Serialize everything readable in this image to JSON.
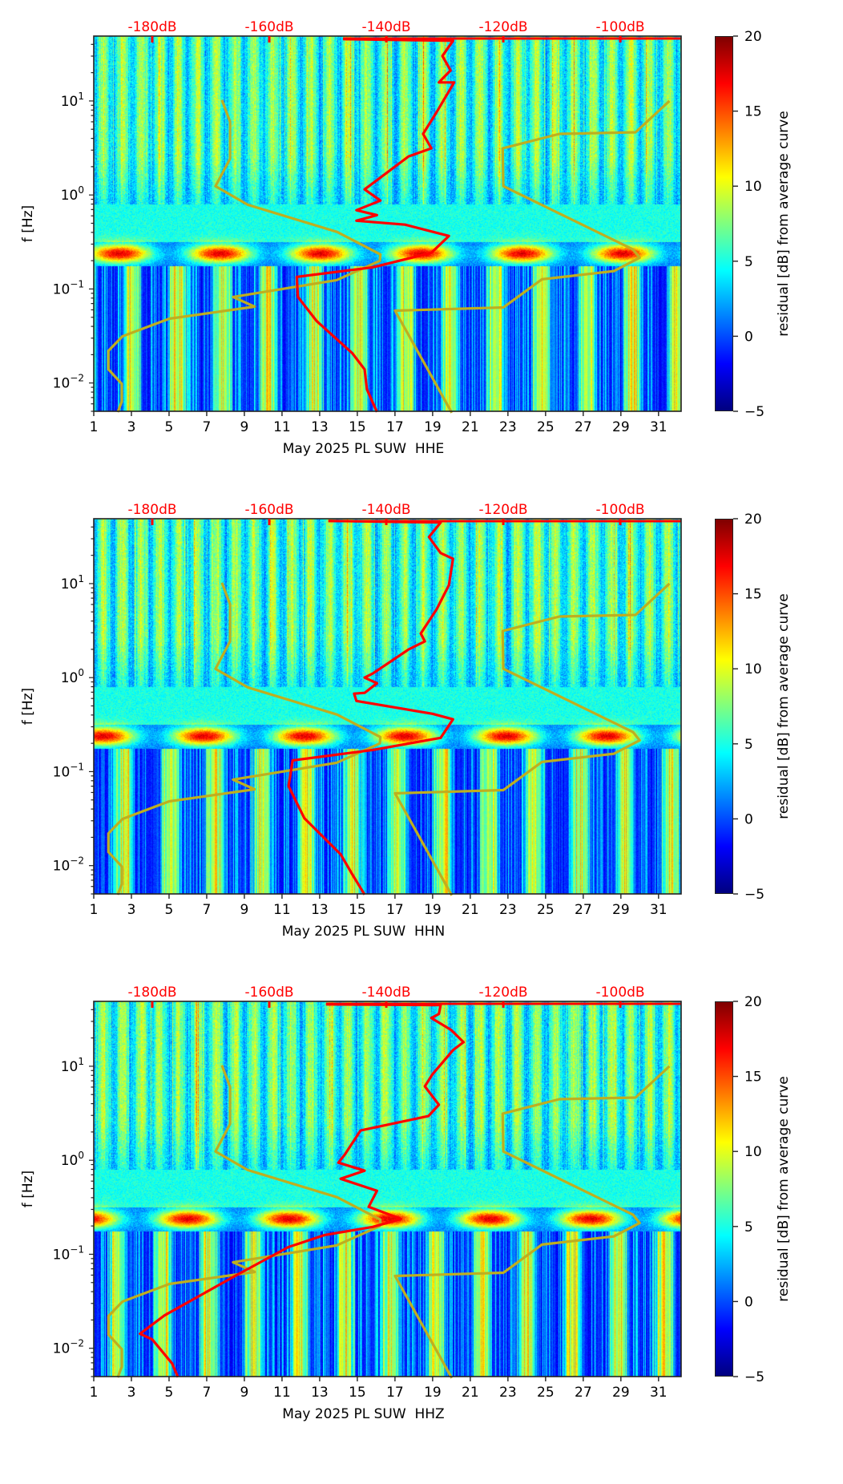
{
  "chart_data": [
    {
      "type": "heatmap",
      "title": "",
      "xlabel": "May 2025 PL SUW  HHE",
      "ylabel": "f [Hz]",
      "x_ticks": [
        "1",
        "3",
        "5",
        "7",
        "9",
        "11",
        "13",
        "15",
        "17",
        "19",
        "21",
        "23",
        "25",
        "27",
        "29",
        "31"
      ],
      "x_range": [
        1,
        32.2
      ],
      "y_scale": "log",
      "y_ticks": [
        {
          "value": 10,
          "label": "10^1"
        },
        {
          "value": 1,
          "label": "10^0"
        },
        {
          "value": 0.1,
          "label": "10^-1"
        },
        {
          "value": 0.01,
          "label": "10^-2"
        }
      ],
      "y_range": [
        0.005,
        49
      ],
      "top_axis": {
        "label_color": "#ff0000",
        "ticks": [
          "-180dB",
          "-160dB",
          "-140dB",
          "-120dB",
          "-100dB"
        ],
        "values": [
          -180,
          -160,
          -140,
          -120,
          -100
        ],
        "range": [
          -190,
          -89.6
        ]
      },
      "colorbar": {
        "label": "residual [dB] from average curve",
        "ticks": [
          "20",
          "15",
          "10",
          "5",
          "0",
          "−5"
        ],
        "values": [
          20,
          15,
          10,
          5,
          0,
          -5
        ],
        "range": [
          -5,
          20
        ],
        "colormap": "jet"
      },
      "series": [
        {
          "name": "average PSD curve",
          "color": "#ff0000",
          "units": [
            "dB",
            "Hz_log10"
          ],
          "points": [
            [
              -147.4,
              1.658
            ],
            [
              -128.6,
              1.641
            ],
            [
              -130.4,
              1.479
            ],
            [
              -129.0,
              1.325
            ],
            [
              -131.0,
              1.197
            ],
            [
              -128.4,
              1.197
            ],
            [
              -131.4,
              0.88
            ],
            [
              -133.7,
              0.65
            ],
            [
              -132.3,
              0.496
            ],
            [
              -136.2,
              0.41
            ],
            [
              -142.6,
              0.111
            ],
            [
              -143.7,
              0.06
            ],
            [
              -141.0,
              -0.06
            ],
            [
              -145.1,
              -0.162
            ],
            [
              -141.6,
              -0.214
            ],
            [
              -145.1,
              -0.274
            ],
            [
              -136.8,
              -0.316
            ],
            [
              -129.3,
              -0.436
            ],
            [
              -132.3,
              -0.615
            ],
            [
              -142.3,
              -0.769
            ],
            [
              -155.3,
              -0.872
            ],
            [
              -155.1,
              -1.085
            ],
            [
              -151.9,
              -1.342
            ],
            [
              -145.8,
              -1.684
            ],
            [
              -143.7,
              -1.855
            ],
            [
              -143.3,
              -2.068
            ],
            [
              -141.6,
              -2.308
            ]
          ]
        },
        {
          "name": "NLNM",
          "color": "#bfae1f",
          "ref": "nlnm"
        },
        {
          "name": "NHNM",
          "color": "#bfae1f",
          "ref": "nhnm"
        }
      ]
    },
    {
      "type": "heatmap",
      "title": "",
      "xlabel": "May 2025 PL SUW  HHN",
      "ylabel": "f [Hz]",
      "x_ticks": [
        "1",
        "3",
        "5",
        "7",
        "9",
        "11",
        "13",
        "15",
        "17",
        "19",
        "21",
        "23",
        "25",
        "27",
        "29",
        "31"
      ],
      "x_range": [
        1,
        32.2
      ],
      "y_scale": "log",
      "y_ticks": [
        {
          "value": 10,
          "label": "10^1"
        },
        {
          "value": 1,
          "label": "10^0"
        },
        {
          "value": 0.1,
          "label": "10^-1"
        },
        {
          "value": 0.01,
          "label": "10^-2"
        }
      ],
      "y_range": [
        0.005,
        49
      ],
      "top_axis": {
        "label_color": "#ff0000",
        "ticks": [
          "-180dB",
          "-160dB",
          "-140dB",
          "-120dB",
          "-100dB"
        ],
        "values": [
          -180,
          -160,
          -140,
          -120,
          -100
        ],
        "range": [
          -190,
          -89.6
        ]
      },
      "colorbar": {
        "label": "residual [dB] from average curve",
        "ticks": [
          "20",
          "15",
          "10",
          "5",
          "0",
          "−5"
        ],
        "values": [
          20,
          15,
          10,
          5,
          0,
          -5
        ],
        "range": [
          -5,
          20
        ],
        "colormap": "jet"
      },
      "series": [
        {
          "name": "average PSD curve",
          "color": "#ff0000",
          "units": [
            "dB",
            "Hz_log10"
          ],
          "points": [
            [
              -149.9,
              1.667
            ],
            [
              -130.7,
              1.65
            ],
            [
              -132.7,
              1.496
            ],
            [
              -130.7,
              1.325
            ],
            [
              -128.6,
              1.265
            ],
            [
              -129.3,
              0.983
            ],
            [
              -131.4,
              0.726
            ],
            [
              -134.1,
              0.47
            ],
            [
              -133.4,
              0.385
            ],
            [
              -136.2,
              0.299
            ],
            [
              -142.3,
              0.043
            ],
            [
              -143.7,
              0.0
            ],
            [
              -141.6,
              -0.06
            ],
            [
              -143.7,
              -0.162
            ],
            [
              -145.5,
              -0.171
            ],
            [
              -145.1,
              -0.248
            ],
            [
              -132.1,
              -0.385
            ],
            [
              -128.6,
              -0.444
            ],
            [
              -130.7,
              -0.641
            ],
            [
              -142.3,
              -0.769
            ],
            [
              -156.0,
              -0.88
            ],
            [
              -156.7,
              -1.154
            ],
            [
              -154.0,
              -1.496
            ],
            [
              -147.8,
              -1.88
            ],
            [
              -145.8,
              -2.094
            ],
            [
              -143.7,
              -2.308
            ]
          ]
        },
        {
          "name": "NLNM",
          "color": "#bfae1f",
          "ref": "nlnm"
        },
        {
          "name": "NHNM",
          "color": "#bfae1f",
          "ref": "nhnm"
        }
      ]
    },
    {
      "type": "heatmap",
      "title": "",
      "xlabel": "May 2025 PL SUW  HHZ",
      "ylabel": "f [Hz]",
      "x_ticks": [
        "1",
        "3",
        "5",
        "7",
        "9",
        "11",
        "13",
        "15",
        "17",
        "19",
        "21",
        "23",
        "25",
        "27",
        "29",
        "31"
      ],
      "x_range": [
        1,
        32.2
      ],
      "y_scale": "log",
      "y_ticks": [
        {
          "value": 10,
          "label": "10^1"
        },
        {
          "value": 1,
          "label": "10^0"
        },
        {
          "value": 0.1,
          "label": "10^-1"
        },
        {
          "value": 0.01,
          "label": "10^-2"
        }
      ],
      "y_range": [
        0.005,
        49
      ],
      "top_axis": {
        "label_color": "#ff0000",
        "ticks": [
          "-180dB",
          "-160dB",
          "-140dB",
          "-120dB",
          "-100dB"
        ],
        "values": [
          -180,
          -160,
          -140,
          -120,
          -100
        ],
        "range": [
          -190,
          -89.6
        ]
      },
      "colorbar": {
        "label": "residual [dB] from average curve",
        "ticks": [
          "20",
          "15",
          "10",
          "5",
          "0",
          "−5"
        ],
        "values": [
          20,
          15,
          10,
          5,
          0,
          -5
        ],
        "range": [
          -5,
          20
        ],
        "colormap": "jet"
      },
      "series": [
        {
          "name": "average PSD curve",
          "color": "#ff0000",
          "units": [
            "dB",
            "Hz_log10"
          ],
          "points": [
            [
              -150.3,
              1.658
            ],
            [
              -130.7,
              1.65
            ],
            [
              -131.0,
              1.556
            ],
            [
              -132.3,
              1.513
            ],
            [
              -128.9,
              1.385
            ],
            [
              -126.8,
              1.256
            ],
            [
              -128.6,
              1.171
            ],
            [
              -132.1,
              0.915
            ],
            [
              -133.4,
              0.786
            ],
            [
              -131.0,
              0.59
            ],
            [
              -132.8,
              0.47
            ],
            [
              -144.4,
              0.316
            ],
            [
              -147.1,
              0.06
            ],
            [
              -148.2,
              -0.026
            ],
            [
              -143.7,
              -0.111
            ],
            [
              -147.8,
              -0.197
            ],
            [
              -141.6,
              -0.325
            ],
            [
              -143.0,
              -0.496
            ],
            [
              -137.5,
              -0.624
            ],
            [
              -142.3,
              -0.709
            ],
            [
              -150.5,
              -0.795
            ],
            [
              -156.7,
              -0.923
            ],
            [
              -165.6,
              -1.222
            ],
            [
              -177.9,
              -1.65
            ],
            [
              -182.1,
              -1.846
            ],
            [
              -180.0,
              -1.906
            ],
            [
              -176.6,
              -2.162
            ],
            [
              -175.6,
              -2.308
            ]
          ]
        },
        {
          "name": "NLNM",
          "color": "#bfae1f",
          "ref": "nlnm"
        },
        {
          "name": "NHNM",
          "color": "#bfae1f",
          "ref": "nhnm"
        }
      ]
    }
  ],
  "noise_models": {
    "nlnm": [
      [
        -168.1,
        1.01
      ],
      [
        -166.7,
        0.78
      ],
      [
        -166.7,
        0.385
      ],
      [
        -169.2,
        0.094
      ],
      [
        -163.7,
        -0.103
      ],
      [
        -148.4,
        -0.393
      ],
      [
        -141.0,
        -0.632
      ],
      [
        -141.1,
        -0.7
      ],
      [
        -148.5,
        -0.906
      ],
      [
        -166.2,
        -1.085
      ],
      [
        -162.5,
        -1.188
      ],
      [
        -177.1,
        -1.316
      ],
      [
        -185.1,
        -1.504
      ],
      [
        -187.5,
        -1.658
      ],
      [
        -187.5,
        -1.855
      ],
      [
        -185.2,
        -2.009
      ],
      [
        -185.2,
        -2.197
      ],
      [
        -185.9,
        -2.31
      ]
    ],
    "nhnm": [
      [
        -91.6,
        1.0
      ],
      [
        -97.4,
        0.667
      ],
      [
        -110.4,
        0.65
      ],
      [
        -120.1,
        0.496
      ],
      [
        -120.0,
        0.094
      ],
      [
        -97.8,
        -0.58
      ],
      [
        -96.7,
        -0.667
      ],
      [
        -101.1,
        -0.81
      ],
      [
        -113.4,
        -0.897
      ],
      [
        -120.0,
        -1.197
      ],
      [
        -138.5,
        -1.231
      ],
      [
        -128.8,
        -2.316
      ]
    ]
  }
}
